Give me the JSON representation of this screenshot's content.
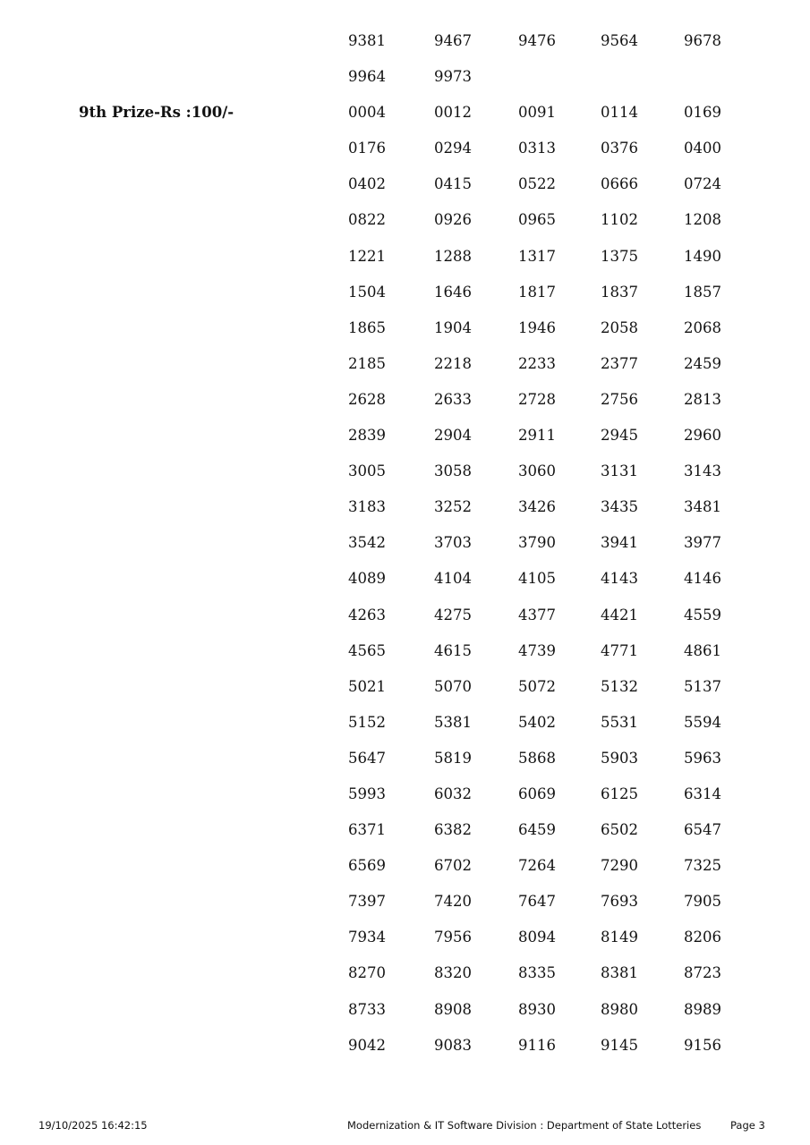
{
  "groups": [
    {
      "label": "",
      "numbers": [
        "9381",
        "9467",
        "9476",
        "9564",
        "9678",
        "9964",
        "9973"
      ]
    },
    {
      "label": "9th Prize-Rs :100/-",
      "numbers": [
        "0004",
        "0012",
        "0091",
        "0114",
        "0169",
        "0176",
        "0294",
        "0313",
        "0376",
        "0400",
        "0402",
        "0415",
        "0522",
        "0666",
        "0724",
        "0822",
        "0926",
        "0965",
        "1102",
        "1208",
        "1221",
        "1288",
        "1317",
        "1375",
        "1490",
        "1504",
        "1646",
        "1817",
        "1837",
        "1857",
        "1865",
        "1904",
        "1946",
        "2058",
        "2068",
        "2185",
        "2218",
        "2233",
        "2377",
        "2459",
        "2628",
        "2633",
        "2728",
        "2756",
        "2813",
        "2839",
        "2904",
        "2911",
        "2945",
        "2960",
        "3005",
        "3058",
        "3060",
        "3131",
        "3143",
        "3183",
        "3252",
        "3426",
        "3435",
        "3481",
        "3542",
        "3703",
        "3790",
        "3941",
        "3977",
        "4089",
        "4104",
        "4105",
        "4143",
        "4146",
        "4263",
        "4275",
        "4377",
        "4421",
        "4559",
        "4565",
        "4615",
        "4739",
        "4771",
        "4861",
        "5021",
        "5070",
        "5072",
        "5132",
        "5137",
        "5152",
        "5381",
        "5402",
        "5531",
        "5594",
        "5647",
        "5819",
        "5868",
        "5903",
        "5963",
        "5993",
        "6032",
        "6069",
        "6125",
        "6314",
        "6371",
        "6382",
        "6459",
        "6502",
        "6547",
        "6569",
        "6702",
        "7264",
        "7290",
        "7325",
        "7397",
        "7420",
        "7647",
        "7693",
        "7905",
        "7934",
        "7956",
        "8094",
        "8149",
        "8206",
        "8270",
        "8320",
        "8335",
        "8381",
        "8723",
        "8733",
        "8908",
        "8930",
        "8980",
        "8989",
        "9042",
        "9083",
        "9116",
        "9145",
        "9156"
      ]
    }
  ],
  "footer": {
    "timestamp": "19/10/2025 16:42:15",
    "division": "Modernization & IT Software Division : Department of State Lotteries",
    "page": "Page 3"
  }
}
